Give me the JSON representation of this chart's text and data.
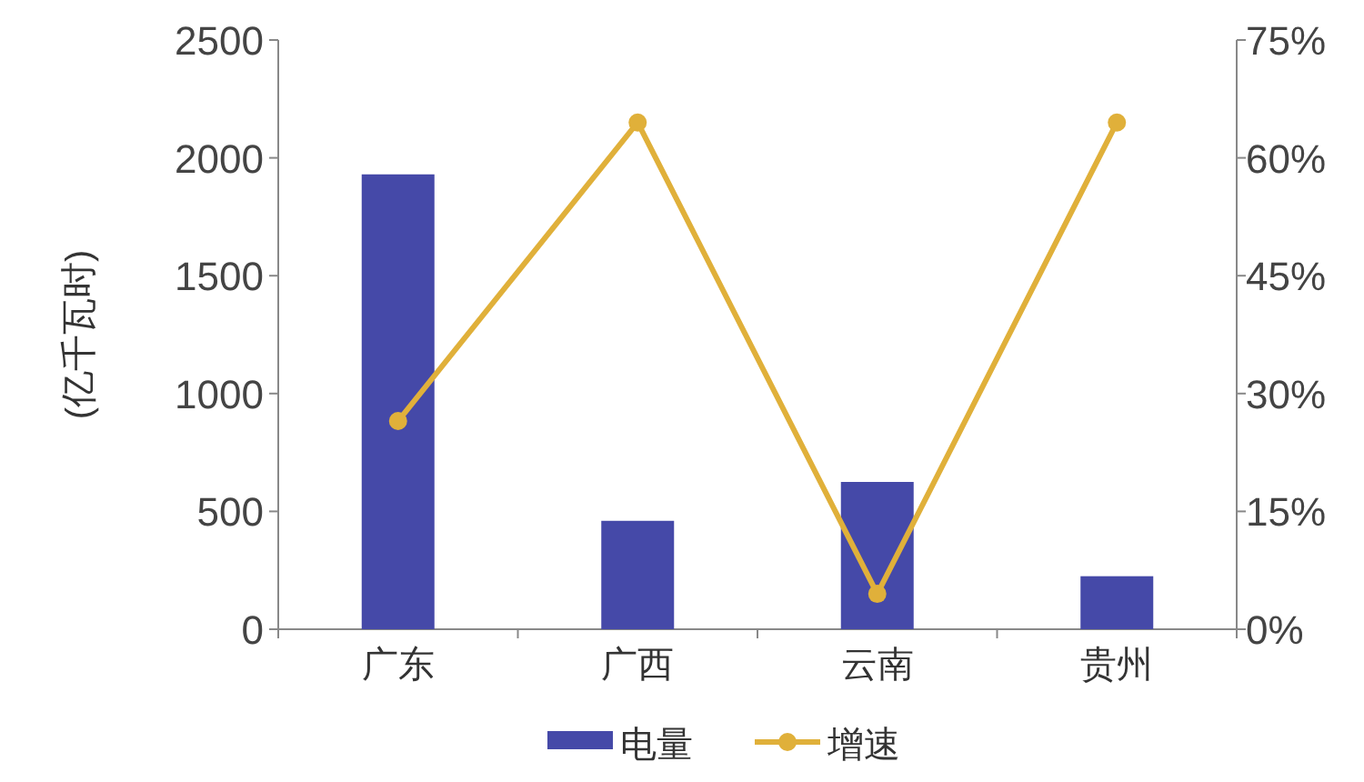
{
  "chart_data": {
    "type": "bar",
    "ylabel": "(亿千瓦时)",
    "categories": [
      "广东",
      "广西",
      "云南",
      "贵州"
    ],
    "series": [
      {
        "name": "电量",
        "color": "#4549a8",
        "values": [
          1930,
          460,
          625,
          225
        ]
      },
      {
        "name": "增速",
        "type": "line",
        "axis": "y2",
        "color": "#e0b03a",
        "marker": "circle",
        "values": [
          26.5,
          64.5,
          4.5,
          64.5
        ]
      }
    ],
    "ylim": [
      0,
      2500
    ],
    "yticks": [
      0,
      500,
      1000,
      1500,
      2000,
      2500
    ],
    "y2lim": [
      0,
      75
    ],
    "y2ticks": [
      {
        "value": 0,
        "label": "0%"
      },
      {
        "value": 15,
        "label": "15%"
      },
      {
        "value": 30,
        "label": "30%"
      },
      {
        "value": 45,
        "label": "45%"
      },
      {
        "value": 60,
        "label": "60%"
      },
      {
        "value": 75,
        "label": "75%"
      }
    ],
    "legend": "bottom",
    "grid": false
  }
}
